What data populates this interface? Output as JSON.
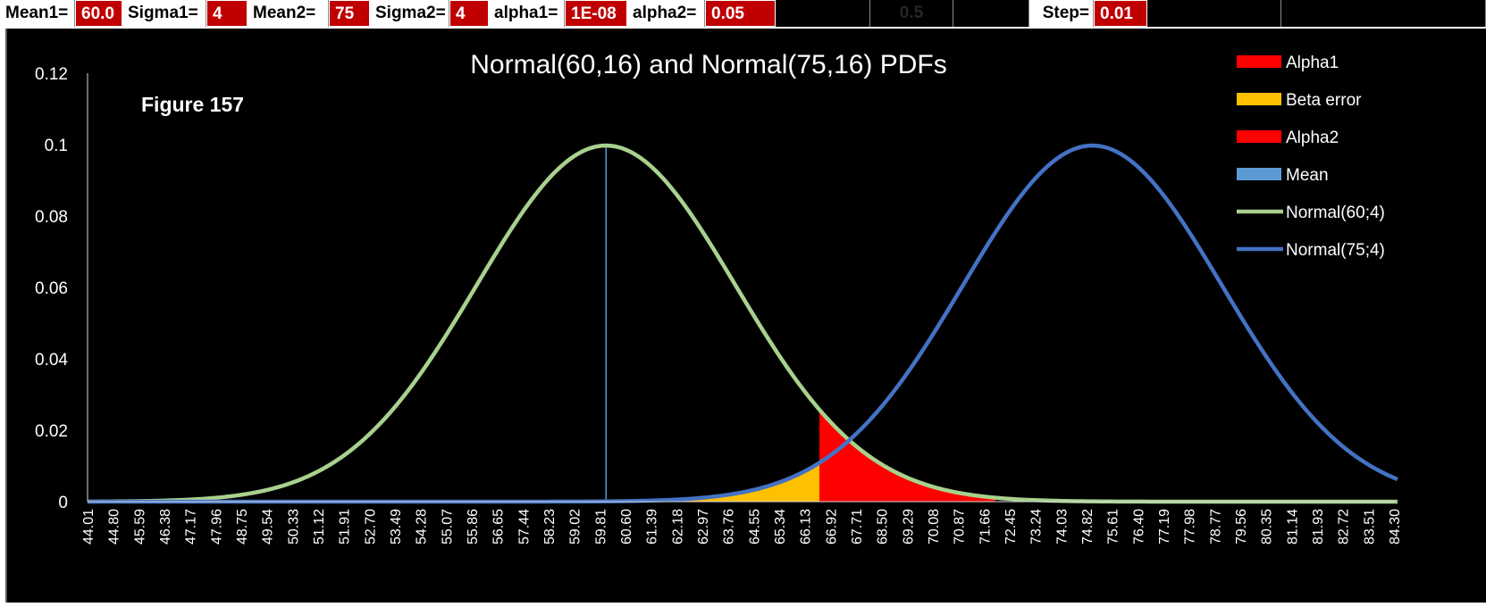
{
  "params": {
    "mean1_label": "Mean1=",
    "mean1_value": "60.0",
    "sigma1_label": "Sigma1=",
    "sigma1_value": "4",
    "mean2_label": "Mean2=",
    "mean2_value": "75",
    "sigma2_label": "Sigma2=",
    "sigma2_value": "4",
    "alpha1_label": "alpha1=",
    "alpha1_value": "1E-08",
    "alpha2_label": "alpha2=",
    "alpha2_value": "0.05",
    "faint_value": "0.5",
    "step_label": "Step=",
    "step_value": "0.01"
  },
  "colors": {
    "background": "#000000",
    "normal1": "#a9d18e",
    "normal2": "#4472c4",
    "alpha": "#ff0000",
    "beta": "#ffc000",
    "mean": "#5b9bd5",
    "param_value_bg": "#c00000"
  },
  "chart_data": {
    "type": "area",
    "title": "Normal(60,16) and Normal(75,16) PDFs",
    "annotation": "Figure 157",
    "xlabel": "",
    "ylabel": "",
    "ylim": [
      0,
      0.12
    ],
    "y_ticks": [
      "0",
      "0.02",
      "0.04",
      "0.06",
      "0.08",
      "0.1",
      "0.12"
    ],
    "xlim": [
      44.01,
      84.3
    ],
    "x_tick_labels": [
      "44.01",
      "44.80",
      "45.59",
      "46.38",
      "47.17",
      "47.96",
      "48.75",
      "49.54",
      "50.33",
      "51.12",
      "51.91",
      "52.70",
      "53.49",
      "54.28",
      "55.07",
      "55.86",
      "56.65",
      "57.44",
      "58.23",
      "59.02",
      "59.81",
      "60.60",
      "61.39",
      "62.18",
      "62.97",
      "63.76",
      "64.55",
      "65.34",
      "66.13",
      "66.92",
      "67.71",
      "68.50",
      "69.29",
      "70.08",
      "70.87",
      "71.66",
      "72.45",
      "73.24",
      "74.03",
      "74.82",
      "75.61",
      "76.40",
      "77.19",
      "77.98",
      "78.77",
      "79.56",
      "80.35",
      "81.14",
      "81.93",
      "82.72",
      "83.51",
      "84.30"
    ],
    "x_range_end": 84.5,
    "curve_step": 0.1,
    "series": [
      {
        "name": "Normal(60;4)",
        "kind": "pdf",
        "mean": 60,
        "sd": 4
      },
      {
        "name": "Normal(75;4)",
        "kind": "pdf",
        "mean": 75,
        "sd": 4
      }
    ],
    "regions": [
      {
        "name": "Alpha1",
        "kind": "area",
        "from": null,
        "to": null
      },
      {
        "name": "Beta error",
        "kind": "area",
        "from": 62.0,
        "to": 66.58
      },
      {
        "name": "Alpha2",
        "kind": "area",
        "from": 66.58,
        "to": 72.0
      }
    ],
    "mean_line": {
      "name": "Mean",
      "x": 60.0
    },
    "legend": [
      "Alpha1",
      "Beta error",
      "Alpha2",
      "Mean",
      "Normal(60;4)",
      "Normal(75;4)"
    ],
    "legend_position": "right",
    "grid": false
  }
}
